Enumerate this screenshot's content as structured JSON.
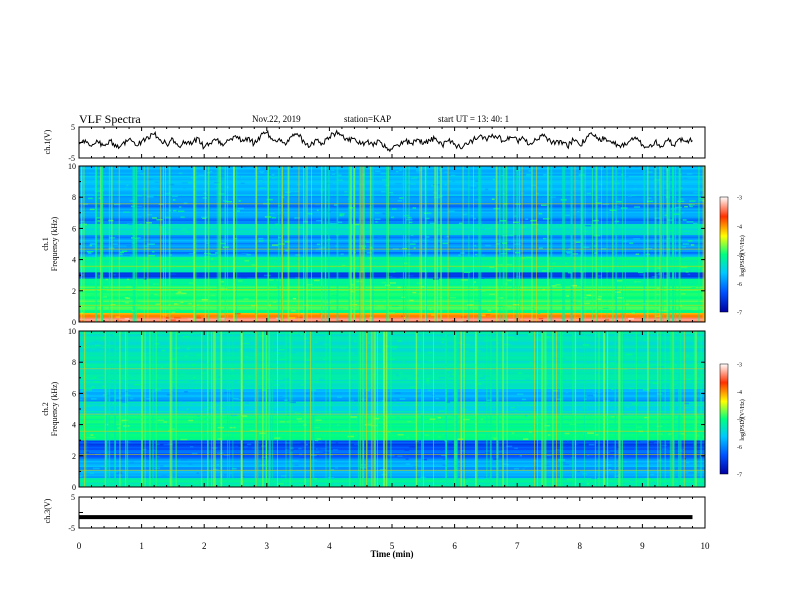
{
  "header": {
    "title": "VLF Spectra",
    "date": "Nov.22, 2019",
    "station": "station=KAP",
    "start": "start  UT =   13: 40: 1"
  },
  "chart_data": [
    {
      "type": "line",
      "panel": "ch1-waveform",
      "ylabel": "ch.1(V)",
      "yticks": [
        "5",
        "-5"
      ],
      "ylim": [
        -5,
        5
      ],
      "xlim": [
        0,
        10
      ],
      "series": [
        {
          "x": [
            0,
            0.1,
            0.2,
            0.3,
            0.4,
            0.5,
            0.6,
            0.7,
            0.8,
            0.9,
            1.0,
            1.1,
            1.2,
            1.3,
            1.4,
            1.5,
            1.6,
            1.7,
            1.8,
            1.9,
            2.0,
            2.1,
            2.2,
            2.3,
            2.4,
            2.5,
            2.6,
            2.7,
            2.8,
            2.9,
            3.0,
            3.1,
            3.2,
            3.3,
            3.4,
            3.5,
            3.6,
            3.7,
            3.8,
            3.9,
            4.0,
            4.1,
            4.2,
            4.3,
            4.4,
            4.5,
            4.6,
            4.7,
            4.8,
            4.9,
            5.0,
            5.1,
            5.2,
            5.3,
            5.4,
            5.5,
            5.6,
            5.7,
            5.8,
            5.9,
            6.0,
            6.1,
            6.2,
            6.3,
            6.4,
            6.5,
            6.6,
            6.7,
            6.8,
            6.9,
            7.0,
            7.1,
            7.2,
            7.3,
            7.4,
            7.5,
            7.6,
            7.7,
            7.8,
            7.9,
            8.0,
            8.1,
            8.2,
            8.3,
            8.4,
            8.5,
            8.6,
            8.7,
            8.8,
            8.9,
            9.0,
            9.1,
            9.2,
            9.3,
            9.4,
            9.5,
            9.6,
            9.7,
            9.8
          ],
          "values": [
            -0.5,
            0.8,
            -1.2,
            0.3,
            -0.8,
            0.6,
            -1.5,
            -0.2,
            1.1,
            -0.9,
            0.4,
            1.8,
            2.6,
            0.9,
            -0.6,
            1.2,
            -1.4,
            0.2,
            -0.7,
            1.5,
            -1.6,
            -0.3,
            0.9,
            -1.1,
            0.7,
            2.2,
            0.4,
            1.6,
            -0.4,
            2.1,
            3.2,
            0.6,
            1.3,
            -0.8,
            1.9,
            2.4,
            0.2,
            -1.0,
            0.8,
            -0.5,
            1.7,
            3.0,
            2.2,
            0.5,
            1.4,
            -0.6,
            0.3,
            -1.2,
            0.6,
            -1.7,
            -2.2,
            -0.9,
            0.4,
            -0.3,
            1.1,
            -0.5,
            0.7,
            1.4,
            -0.8,
            0.5,
            -0.4,
            -2.0,
            -0.6,
            0.9,
            2.1,
            1.2,
            2.6,
            1.8,
            0.4,
            1.6,
            0.6,
            1.3,
            -0.5,
            0.9,
            2.7,
            1.1,
            -0.6,
            0.6,
            -1.4,
            0.8,
            -0.9,
            1.2,
            2.5,
            0.7,
            1.6,
            0.2,
            -0.6,
            -1.3,
            0.5,
            1.1,
            -0.7,
            -1.5,
            0.3,
            -1.2,
            0.6,
            -0.9,
            1.4,
            0.2,
            0.6
          ]
        }
      ]
    },
    {
      "type": "heatmap",
      "panel": "ch1-spectrogram",
      "ylabel": "ch.1",
      "ylabel2": "Frequency  (kHz)",
      "ylim": [
        0,
        10
      ],
      "yticks": [
        "0",
        "2",
        "4",
        "6",
        "8",
        "10"
      ],
      "xlim": [
        0,
        10
      ],
      "colorbar": {
        "label": "log(PSD)(V²/Hz)",
        "range": [
          -7,
          -3
        ],
        "ticks": [
          "-3",
          "-4",
          "-5",
          "-6",
          "-7"
        ],
        "colors": [
          "#0000a0",
          "#0050ff",
          "#00c8ff",
          "#00ff80",
          "#ffff00",
          "#ff3000",
          "#ffffff"
        ]
      }
    },
    {
      "type": "heatmap",
      "panel": "ch2-spectrogram",
      "ylabel": "ch.2",
      "ylabel2": "Frequency  (kHz)",
      "ylim": [
        0,
        10
      ],
      "yticks": [
        "0",
        "2",
        "4",
        "6",
        "8",
        "10"
      ],
      "xlim": [
        0,
        10
      ],
      "colorbar": {
        "label": "log(PSD)(V²/Hz)",
        "range": [
          -7,
          -3
        ],
        "ticks": [
          "-3",
          "-4",
          "-5",
          "-6",
          "-7"
        ],
        "colors": [
          "#0000a0",
          "#0050ff",
          "#00c8ff",
          "#00ff80",
          "#ffff00",
          "#ff3000",
          "#ffffff"
        ]
      }
    },
    {
      "type": "line",
      "panel": "ch3-waveform",
      "ylabel": "ch.3(V)",
      "yticks": [
        "5",
        "-5"
      ],
      "ylim": [
        -5,
        5
      ],
      "xlim": [
        0,
        10
      ],
      "xlabel": "Time  (min)",
      "xticks": [
        "0",
        "1",
        "2",
        "3",
        "4",
        "5",
        "6",
        "7",
        "8",
        "9",
        "10"
      ],
      "series": [
        {
          "x": [
            0,
            9.8
          ],
          "values": [
            -1.5,
            -1.5
          ]
        }
      ]
    }
  ]
}
